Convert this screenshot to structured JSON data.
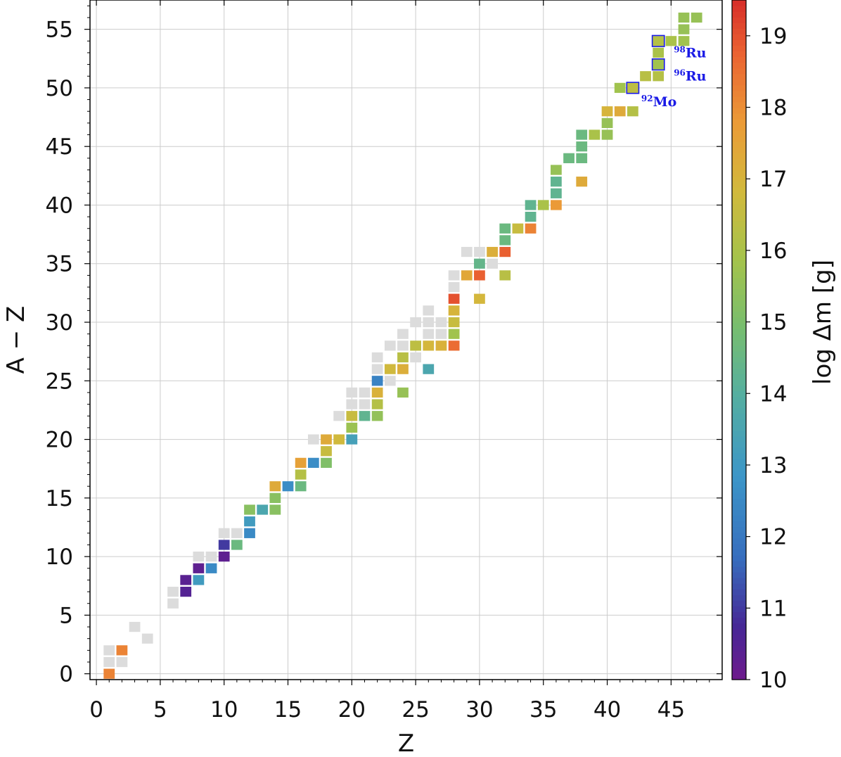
{
  "chart_data": {
    "type": "heatmap",
    "xlabel": "Z",
    "ylabel": "A − Z",
    "xlim": [
      -0.5,
      49
    ],
    "ylim": [
      -0.5,
      57.5
    ],
    "x_ticks": [
      0,
      5,
      10,
      15,
      20,
      25,
      30,
      35,
      40,
      45
    ],
    "y_ticks": [
      0,
      5,
      10,
      15,
      20,
      25,
      30,
      35,
      40,
      45,
      50,
      55
    ],
    "grid": true,
    "colorbar": {
      "label": "log Δm [g]",
      "min": 10,
      "max": 19.5,
      "ticks": [
        10,
        11,
        12,
        13,
        14,
        15,
        16,
        17,
        18,
        19
      ],
      "colormap": "Spectral_r"
    },
    "gray_cells": [
      [
        1,
        1
      ],
      [
        1,
        2
      ],
      [
        2,
        1
      ],
      [
        3,
        4
      ],
      [
        4,
        3
      ],
      [
        6,
        6
      ],
      [
        6,
        7
      ],
      [
        8,
        10
      ],
      [
        9,
        10
      ],
      [
        10,
        12
      ],
      [
        11,
        12
      ],
      [
        17,
        20
      ],
      [
        19,
        22
      ],
      [
        20,
        23
      ],
      [
        20,
        24
      ],
      [
        21,
        23
      ],
      [
        21,
        24
      ],
      [
        22,
        26
      ],
      [
        22,
        27
      ],
      [
        23,
        25
      ],
      [
        23,
        28
      ],
      [
        24,
        28
      ],
      [
        24,
        29
      ],
      [
        25,
        27
      ],
      [
        25,
        30
      ],
      [
        26,
        29
      ],
      [
        26,
        30
      ],
      [
        26,
        31
      ],
      [
        27,
        29
      ],
      [
        27,
        30
      ],
      [
        28,
        33
      ],
      [
        28,
        34
      ],
      [
        29,
        36
      ],
      [
        30,
        36
      ],
      [
        31,
        35
      ]
    ],
    "cells": [
      {
        "z": 1,
        "n": 0,
        "v": 18.2
      },
      {
        "z": 2,
        "n": 2,
        "v": 18.2
      },
      {
        "z": 7,
        "n": 7,
        "v": 10.5
      },
      {
        "z": 7,
        "n": 8,
        "v": 10.4
      },
      {
        "z": 8,
        "n": 8,
        "v": 13.1
      },
      {
        "z": 8,
        "n": 9,
        "v": 10.3
      },
      {
        "z": 9,
        "n": 9,
        "v": 12.5
      },
      {
        "z": 10,
        "n": 10,
        "v": 10.3
      },
      {
        "z": 10,
        "n": 11,
        "v": 11.0
      },
      {
        "z": 11,
        "n": 11,
        "v": 14.6
      },
      {
        "z": 12,
        "n": 12,
        "v": 12.5
      },
      {
        "z": 12,
        "n": 13,
        "v": 13.1
      },
      {
        "z": 12,
        "n": 14,
        "v": 15.3
      },
      {
        "z": 13,
        "n": 14,
        "v": 13.6
      },
      {
        "z": 14,
        "n": 14,
        "v": 15.3
      },
      {
        "z": 14,
        "n": 15,
        "v": 15.3
      },
      {
        "z": 14,
        "n": 16,
        "v": 17.3
      },
      {
        "z": 15,
        "n": 16,
        "v": 12.6
      },
      {
        "z": 16,
        "n": 16,
        "v": 14.6
      },
      {
        "z": 16,
        "n": 17,
        "v": 16.2
      },
      {
        "z": 16,
        "n": 18,
        "v": 17.6
      },
      {
        "z": 17,
        "n": 18,
        "v": 12.6
      },
      {
        "z": 18,
        "n": 18,
        "v": 15.1
      },
      {
        "z": 18,
        "n": 19,
        "v": 16.6
      },
      {
        "z": 18,
        "n": 20,
        "v": 17.3
      },
      {
        "z": 19,
        "n": 20,
        "v": 16.8
      },
      {
        "z": 20,
        "n": 20,
        "v": 13.3
      },
      {
        "z": 20,
        "n": 21,
        "v": 15.7
      },
      {
        "z": 20,
        "n": 22,
        "v": 16.6
      },
      {
        "z": 21,
        "n": 22,
        "v": 14.3
      },
      {
        "z": 22,
        "n": 22,
        "v": 15.5
      },
      {
        "z": 22,
        "n": 23,
        "v": 16.2
      },
      {
        "z": 22,
        "n": 24,
        "v": 17.1
      },
      {
        "z": 22,
        "n": 25,
        "v": 12.3
      },
      {
        "z": 23,
        "n": 26,
        "v": 16.8
      },
      {
        "z": 24,
        "n": 24,
        "v": 15.6
      },
      {
        "z": 24,
        "n": 26,
        "v": 17.2
      },
      {
        "z": 24,
        "n": 27,
        "v": 16.3
      },
      {
        "z": 25,
        "n": 28,
        "v": 16.4
      },
      {
        "z": 26,
        "n": 26,
        "v": 13.6
      },
      {
        "z": 26,
        "n": 28,
        "v": 16.9
      },
      {
        "z": 27,
        "n": 28,
        "v": 17.1
      },
      {
        "z": 28,
        "n": 28,
        "v": 18.6
      },
      {
        "z": 28,
        "n": 29,
        "v": 15.8
      },
      {
        "z": 28,
        "n": 30,
        "v": 16.6
      },
      {
        "z": 28,
        "n": 31,
        "v": 17.0
      },
      {
        "z": 28,
        "n": 32,
        "v": 19.0
      },
      {
        "z": 29,
        "n": 34,
        "v": 17.4
      },
      {
        "z": 30,
        "n": 32,
        "v": 16.9
      },
      {
        "z": 30,
        "n": 34,
        "v": 18.8
      },
      {
        "z": 30,
        "n": 35,
        "v": 14.4
      },
      {
        "z": 31,
        "n": 36,
        "v": 17.2
      },
      {
        "z": 32,
        "n": 34,
        "v": 16.3
      },
      {
        "z": 32,
        "n": 36,
        "v": 18.8
      },
      {
        "z": 32,
        "n": 37,
        "v": 14.6
      },
      {
        "z": 32,
        "n": 38,
        "v": 14.6
      },
      {
        "z": 33,
        "n": 38,
        "v": 16.6
      },
      {
        "z": 34,
        "n": 38,
        "v": 18.2
      },
      {
        "z": 34,
        "n": 39,
        "v": 14.3
      },
      {
        "z": 34,
        "n": 40,
        "v": 14.3
      },
      {
        "z": 35,
        "n": 40,
        "v": 16.0
      },
      {
        "z": 36,
        "n": 40,
        "v": 17.8
      },
      {
        "z": 36,
        "n": 41,
        "v": 14.3
      },
      {
        "z": 36,
        "n": 42,
        "v": 14.3
      },
      {
        "z": 36,
        "n": 43,
        "v": 15.6
      },
      {
        "z": 37,
        "n": 44,
        "v": 14.6
      },
      {
        "z": 38,
        "n": 42,
        "v": 17.3
      },
      {
        "z": 38,
        "n": 44,
        "v": 14.6
      },
      {
        "z": 38,
        "n": 45,
        "v": 14.6
      },
      {
        "z": 38,
        "n": 46,
        "v": 14.6
      },
      {
        "z": 39,
        "n": 46,
        "v": 16.0
      },
      {
        "z": 40,
        "n": 46,
        "v": 15.6
      },
      {
        "z": 40,
        "n": 47,
        "v": 15.6
      },
      {
        "z": 40,
        "n": 48,
        "v": 17.0
      },
      {
        "z": 41,
        "n": 48,
        "v": 17.3
      },
      {
        "z": 41,
        "n": 50,
        "v": 15.8
      },
      {
        "z": 42,
        "n": 48,
        "v": 16.2
      },
      {
        "z": 42,
        "n": 50,
        "v": 16.4
      },
      {
        "z": 43,
        "n": 51,
        "v": 16.3
      },
      {
        "z": 44,
        "n": 51,
        "v": 16.2
      },
      {
        "z": 44,
        "n": 52,
        "v": 15.8
      },
      {
        "z": 44,
        "n": 53,
        "v": 16.0
      },
      {
        "z": 44,
        "n": 54,
        "v": 16.2
      },
      {
        "z": 45,
        "n": 54,
        "v": 16.0
      },
      {
        "z": 46,
        "n": 54,
        "v": 15.8
      },
      {
        "z": 46,
        "n": 55,
        "v": 15.6
      },
      {
        "z": 46,
        "n": 56,
        "v": 15.6
      },
      {
        "z": 47,
        "n": 56,
        "v": 15.6
      }
    ],
    "highlighted": [
      {
        "z": 42,
        "n": 50,
        "label_sup": "92",
        "label_el": "Mo"
      },
      {
        "z": 44,
        "n": 52,
        "label_sup": "96",
        "label_el": "Ru"
      },
      {
        "z": 44,
        "n": 54,
        "label_sup": "98",
        "label_el": "Ru"
      }
    ]
  }
}
